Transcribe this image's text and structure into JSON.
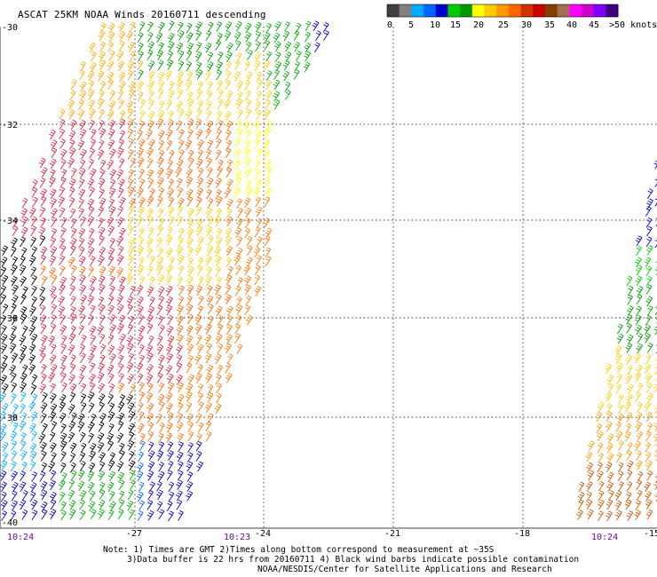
{
  "title": "ASCAT 25KM NOAA Winds 20160711 descending",
  "colorbar": {
    "colors": [
      "#404040",
      "#808080",
      "#00aaff",
      "#0066ff",
      "#0000cc",
      "#00cc00",
      "#009900",
      "#ffff00",
      "#ffcc00",
      "#ff9900",
      "#ff6600",
      "#cc3300",
      "#cc0000",
      "#804000",
      "#a07050",
      "#ff00ff",
      "#cc00cc",
      "#8000ff",
      "#400080"
    ],
    "labels": [
      "0",
      "5",
      "10",
      "15",
      "20",
      "25",
      "30",
      "35",
      "40",
      "45",
      ">50 knots"
    ]
  },
  "axes": {
    "lat_labels": [
      "-30",
      "-32",
      "-34",
      "-36",
      "-38",
      "-40"
    ],
    "lon_labels": [
      "-27",
      "-24",
      "-21",
      "-18",
      "-15"
    ]
  },
  "times": [
    "10:24",
    "10:23",
    "10:24"
  ],
  "notes": [
    "Note: 1) Times are GMT 2)Times along bottom correspond to measurement at ~35S",
    "3)Data buffer is 22 hrs from 20160711 4) Black wind barbs indicate possible contamination",
    "NOAA/NESDIS/Center for Satellite Applications and Research"
  ]
}
